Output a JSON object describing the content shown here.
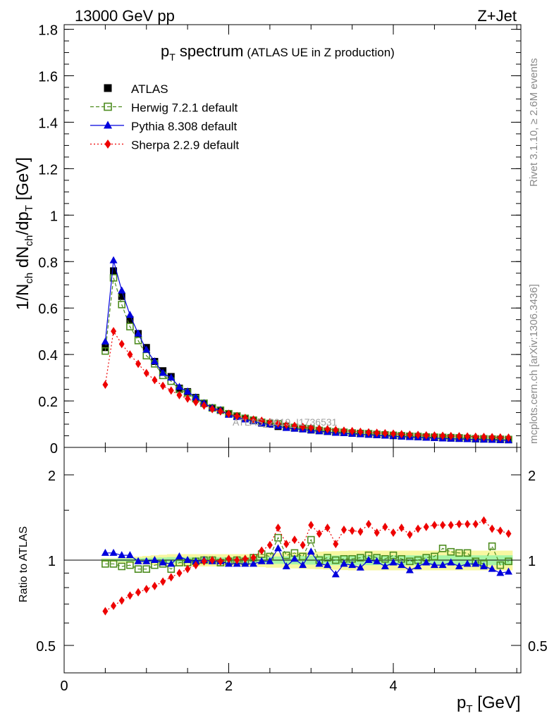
{
  "header": {
    "left": "13000 GeV pp",
    "right": "Z+Jet"
  },
  "side_labels": {
    "rivet": "Rivet 3.1.10, ≥ 2.6M events",
    "mcplots": "mcplots.cern.ch [arXiv:1306.3436]"
  },
  "watermark": "ATLAS_2019_I1736531",
  "chart_data": [
    {
      "type": "line",
      "title_main": "p",
      "title_sub": "T",
      "title_rest": " spectrum",
      "title_small": "(ATLAS UE in Z production)",
      "ylabel": "1/N_ch dN_ch/dp_T [GeV]",
      "ylim": [
        0,
        1.82
      ],
      "xlim": [
        0,
        5.55
      ],
      "yticks": [
        "0",
        "0.2",
        "0.4",
        "0.6",
        "0.8",
        "1",
        "1.2",
        "1.4",
        "1.6",
        "1.8"
      ],
      "ytick_values": [
        0,
        0.2,
        0.4,
        0.6,
        0.8,
        1.0,
        1.2,
        1.4,
        1.6,
        1.8
      ],
      "legend_position": "top-left",
      "x": [
        0.5,
        0.6,
        0.7,
        0.8,
        0.9,
        1.0,
        1.1,
        1.2,
        1.3,
        1.4,
        1.5,
        1.6,
        1.7,
        1.8,
        1.9,
        2.0,
        2.1,
        2.2,
        2.3,
        2.4,
        2.5,
        2.6,
        2.7,
        2.8,
        2.9,
        3.0,
        3.1,
        3.2,
        3.3,
        3.4,
        3.5,
        3.6,
        3.7,
        3.8,
        3.9,
        4.0,
        4.1,
        4.2,
        4.3,
        4.4,
        4.5,
        4.6,
        4.7,
        4.8,
        4.9,
        5.0,
        5.1,
        5.2,
        5.3,
        5.4
      ],
      "series": [
        {
          "name": "ATLAS",
          "color": "#000000",
          "marker": "filled-square",
          "values": [
            0.43,
            0.76,
            0.65,
            0.55,
            0.49,
            0.43,
            0.37,
            0.33,
            0.305,
            0.255,
            0.24,
            0.215,
            0.19,
            0.17,
            0.16,
            0.145,
            0.135,
            0.125,
            0.115,
            0.105,
            0.1,
            0.09,
            0.087,
            0.083,
            0.08,
            0.075,
            0.072,
            0.069,
            0.066,
            0.064,
            0.061,
            0.059,
            0.057,
            0.055,
            0.053,
            0.051,
            0.049,
            0.047,
            0.046,
            0.044,
            0.043,
            0.041,
            0.04,
            0.039,
            0.038,
            0.037,
            0.036,
            0.035,
            0.034,
            0.033
          ]
        },
        {
          "name": "Herwig 7.2.1 default",
          "color": "#4d8c1f",
          "marker": "open-square",
          "dash": "5,3",
          "values": [
            0.415,
            0.73,
            0.615,
            0.52,
            0.46,
            0.395,
            0.36,
            0.31,
            0.285,
            0.25,
            0.235,
            0.21,
            0.19,
            0.17,
            0.16,
            0.145,
            0.135,
            0.125,
            0.117,
            0.108,
            0.103,
            0.101,
            0.09,
            0.086,
            0.082,
            0.08,
            0.073,
            0.07,
            0.067,
            0.065,
            0.062,
            0.06,
            0.059,
            0.056,
            0.054,
            0.052,
            0.05,
            0.048,
            0.047,
            0.045,
            0.044,
            0.043,
            0.042,
            0.041,
            0.039,
            0.037,
            0.037,
            0.036,
            0.035,
            0.034
          ]
        },
        {
          "name": "Pythia 8.308 default",
          "color": "#0000dd",
          "marker": "filled-triangle",
          "dash": "",
          "values": [
            0.455,
            0.805,
            0.675,
            0.57,
            0.49,
            0.42,
            0.37,
            0.32,
            0.3,
            0.26,
            0.24,
            0.215,
            0.19,
            0.17,
            0.16,
            0.14,
            0.13,
            0.12,
            0.113,
            0.103,
            0.098,
            0.092,
            0.083,
            0.08,
            0.077,
            0.073,
            0.069,
            0.066,
            0.062,
            0.061,
            0.058,
            0.056,
            0.054,
            0.052,
            0.05,
            0.048,
            0.046,
            0.044,
            0.043,
            0.041,
            0.04,
            0.038,
            0.037,
            0.036,
            0.035,
            0.034,
            0.033,
            0.032,
            0.031,
            0.03
          ]
        },
        {
          "name": "Sherpa 2.2.9 default",
          "color": "#ee0000",
          "marker": "filled-diamond",
          "dash": "2,3",
          "values": [
            0.27,
            0.5,
            0.445,
            0.4,
            0.36,
            0.32,
            0.29,
            0.265,
            0.245,
            0.225,
            0.21,
            0.195,
            0.18,
            0.165,
            0.155,
            0.145,
            0.135,
            0.127,
            0.12,
            0.115,
            0.108,
            0.103,
            0.097,
            0.093,
            0.088,
            0.085,
            0.081,
            0.078,
            0.075,
            0.072,
            0.07,
            0.067,
            0.065,
            0.063,
            0.061,
            0.059,
            0.057,
            0.055,
            0.054,
            0.052,
            0.051,
            0.05,
            0.049,
            0.048,
            0.047,
            0.046,
            0.045,
            0.044,
            0.043,
            0.042
          ]
        }
      ]
    },
    {
      "type": "line",
      "ylabel": "Ratio to ATLAS",
      "xlabel_main": "p",
      "xlabel_sub": "T",
      "xlabel_rest": " [GeV]",
      "xlim": [
        0,
        5.55
      ],
      "xticks": [
        "0",
        "2",
        "4"
      ],
      "xtick_values": [
        0,
        2,
        4
      ],
      "ylim": [
        0.4,
        2.5
      ],
      "yscale": "log",
      "yticks": [
        "0.5",
        "1",
        "2"
      ],
      "ytick_values": [
        0.5,
        1,
        2
      ],
      "x": [
        0.5,
        0.6,
        0.7,
        0.8,
        0.9,
        1.0,
        1.1,
        1.2,
        1.3,
        1.4,
        1.5,
        1.6,
        1.7,
        1.8,
        1.9,
        2.0,
        2.1,
        2.2,
        2.3,
        2.4,
        2.5,
        2.6,
        2.7,
        2.8,
        2.9,
        3.0,
        3.1,
        3.2,
        3.3,
        3.4,
        3.5,
        3.6,
        3.7,
        3.8,
        3.9,
        4.0,
        4.1,
        4.2,
        4.3,
        4.4,
        4.5,
        4.6,
        4.7,
        4.8,
        4.9,
        5.0,
        5.1,
        5.2,
        5.3,
        5.4
      ],
      "bands": {
        "inner_color": "#a6f4a6",
        "outer_color": "#f7f7a0",
        "inner_halfwidth": [
          0.01,
          0.01,
          0.012,
          0.014,
          0.016,
          0.018,
          0.02,
          0.022,
          0.025,
          0.025,
          0.025,
          0.025,
          0.025,
          0.025,
          0.025,
          0.025,
          0.025,
          0.025,
          0.025,
          0.028,
          0.03,
          0.03,
          0.032,
          0.034,
          0.035,
          0.036,
          0.037,
          0.038,
          0.039,
          0.04,
          0.04,
          0.04,
          0.04,
          0.04,
          0.04,
          0.04,
          0.04,
          0.04,
          0.04,
          0.04,
          0.04,
          0.04,
          0.04,
          0.04,
          0.04,
          0.04,
          0.04,
          0.04,
          0.04,
          0.04
        ],
        "outer_halfwidth": [
          0.015,
          0.015,
          0.02,
          0.025,
          0.03,
          0.035,
          0.04,
          0.045,
          0.05,
          0.05,
          0.05,
          0.05,
          0.05,
          0.05,
          0.05,
          0.05,
          0.05,
          0.05,
          0.05,
          0.055,
          0.06,
          0.06,
          0.062,
          0.065,
          0.068,
          0.07,
          0.072,
          0.074,
          0.076,
          0.078,
          0.08,
          0.08,
          0.08,
          0.08,
          0.08,
          0.08,
          0.08,
          0.08,
          0.08,
          0.08,
          0.08,
          0.08,
          0.08,
          0.08,
          0.08,
          0.08,
          0.08,
          0.08,
          0.08,
          0.08
        ]
      },
      "series": [
        {
          "name": "Herwig 7.2.1 default",
          "color": "#4d8c1f",
          "marker": "open-square",
          "dash": "5,3",
          "values": [
            0.97,
            0.97,
            0.95,
            0.96,
            0.93,
            0.93,
            0.96,
            0.97,
            0.93,
            0.98,
            0.98,
            0.99,
            1.0,
            1.0,
            0.98,
            0.99,
            1.0,
            0.99,
            1.02,
            1.05,
            1.03,
            1.2,
            1.04,
            1.06,
            1.03,
            1.18,
            1.0,
            1.02,
            1.0,
            1.01,
            1.01,
            1.02,
            1.04,
            1.02,
            1.01,
            1.04,
            1.01,
            0.99,
            1.0,
            1.02,
            1.03,
            1.1,
            1.07,
            1.06,
            1.06,
            0.99,
            0.97,
            1.12,
            0.96,
            0.99
          ]
        },
        {
          "name": "Pythia 8.308 default",
          "color": "#0000dd",
          "marker": "filled-triangle",
          "dash": "",
          "values": [
            1.06,
            1.06,
            1.04,
            1.04,
            0.99,
            0.99,
            1.0,
            0.98,
            0.97,
            1.03,
            1.0,
            0.99,
            1.0,
            0.99,
            0.99,
            0.97,
            0.97,
            0.97,
            0.97,
            0.99,
            0.99,
            1.1,
            0.95,
            1.01,
            0.96,
            1.07,
            0.97,
            0.96,
            0.89,
            0.97,
            0.96,
            0.94,
            1.0,
            0.99,
            0.95,
            0.98,
            0.96,
            0.92,
            0.95,
            0.98,
            0.96,
            0.96,
            0.98,
            0.95,
            0.97,
            0.97,
            0.95,
            0.93,
            0.9,
            0.91
          ]
        },
        {
          "name": "Sherpa 2.2.9 default",
          "color": "#ee0000",
          "marker": "filled-diamond",
          "dash": "2,3",
          "values": [
            0.66,
            0.69,
            0.72,
            0.75,
            0.77,
            0.79,
            0.81,
            0.84,
            0.87,
            0.9,
            0.93,
            0.96,
            0.99,
            1.0,
            0.99,
            1.01,
            1.0,
            1.01,
            1.02,
            1.08,
            1.13,
            1.3,
            1.14,
            1.18,
            1.13,
            1.33,
            1.24,
            1.3,
            1.14,
            1.28,
            1.27,
            1.26,
            1.34,
            1.25,
            1.31,
            1.25,
            1.3,
            1.23,
            1.29,
            1.31,
            1.33,
            1.33,
            1.33,
            1.34,
            1.34,
            1.34,
            1.38,
            1.29,
            1.27,
            1.24
          ]
        }
      ]
    }
  ]
}
